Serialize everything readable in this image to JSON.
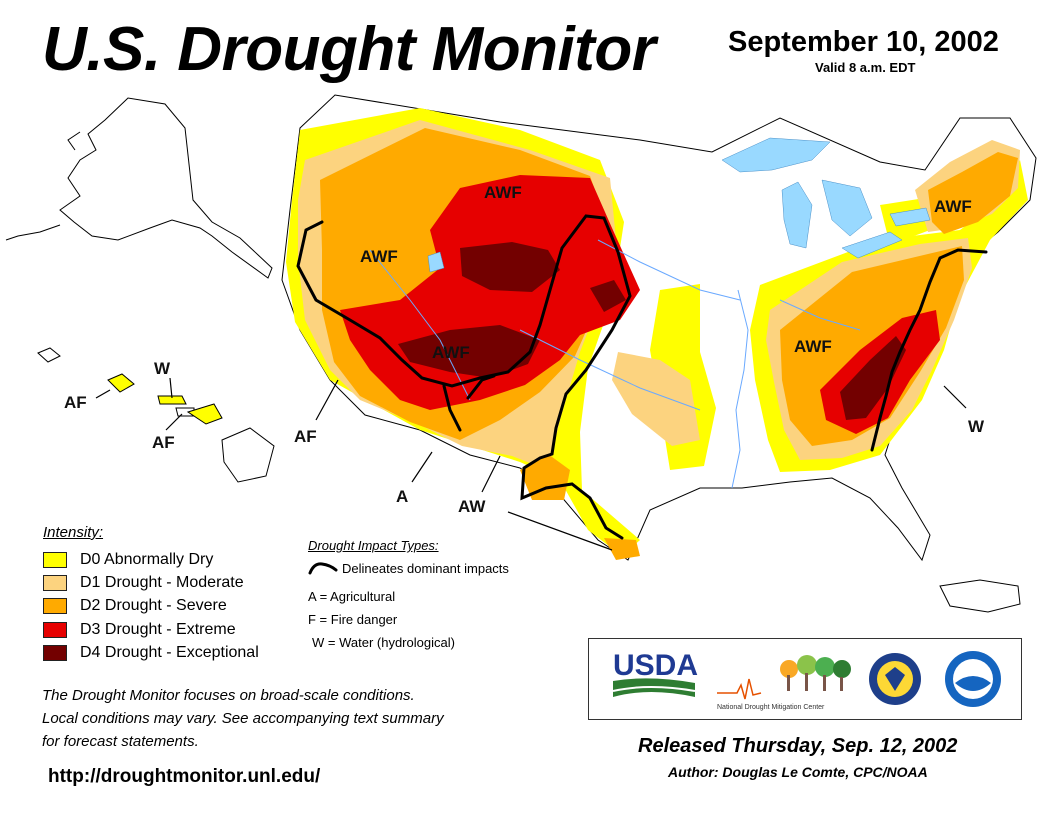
{
  "header": {
    "title": "U.S. Drought Monitor",
    "date": "September 10, 2002",
    "valid": "Valid 8 a.m. EDT"
  },
  "colors": {
    "D0": "#ffff00",
    "D1": "#fcd37f",
    "D2": "#ffaa00",
    "D3": "#e60000",
    "D4": "#730000",
    "water": "#99d9ff",
    "river": "#6aa9ff",
    "boundary": "#000000"
  },
  "legend": {
    "title": "Intensity:",
    "items": [
      {
        "code": "D0",
        "label": "D0 Abnormally Dry"
      },
      {
        "code": "D1",
        "label": "D1 Drought - Moderate"
      },
      {
        "code": "D2",
        "label": "D2 Drought - Severe"
      },
      {
        "code": "D3",
        "label": "D3 Drought - Extreme"
      },
      {
        "code": "D4",
        "label": "D4 Drought - Exceptional"
      }
    ]
  },
  "impact_types": {
    "title": "Drought Impact Types:",
    "boundary_label": "Delineates dominant impacts",
    "items": [
      "A = Agricultural",
      "F = Fire danger",
      "W = Water (hydrological)"
    ]
  },
  "map_labels": [
    {
      "id": "north-rockies",
      "text": "AWF"
    },
    {
      "id": "great-basin",
      "text": "AWF"
    },
    {
      "id": "southwest",
      "text": "AWF"
    },
    {
      "id": "ohio-valley",
      "text": "AWF"
    },
    {
      "id": "northeast",
      "text": "AWF"
    },
    {
      "id": "southeast-w",
      "text": "W"
    },
    {
      "id": "california-af",
      "text": "AF"
    },
    {
      "id": "new-mexico-a",
      "text": "A"
    },
    {
      "id": "texas-aw",
      "text": "AW"
    },
    {
      "id": "hawaii-w",
      "text": "W"
    },
    {
      "id": "hawaii-af-1",
      "text": "AF"
    },
    {
      "id": "hawaii-af-2",
      "text": "AF"
    }
  ],
  "footer": {
    "note_lines": [
      "The Drought Monitor focuses on broad-scale conditions.",
      "Local conditions may vary. See accompanying text summary",
      "for forecast statements."
    ],
    "url": "http://droughtmonitor.unl.edu/",
    "released": "Released Thursday, Sep. 12, 2002",
    "author": "Author: Douglas Le Comte, CPC/NOAA"
  },
  "logos": {
    "usda": "USDA",
    "ndmc": "National Drought Mitigation Center"
  }
}
